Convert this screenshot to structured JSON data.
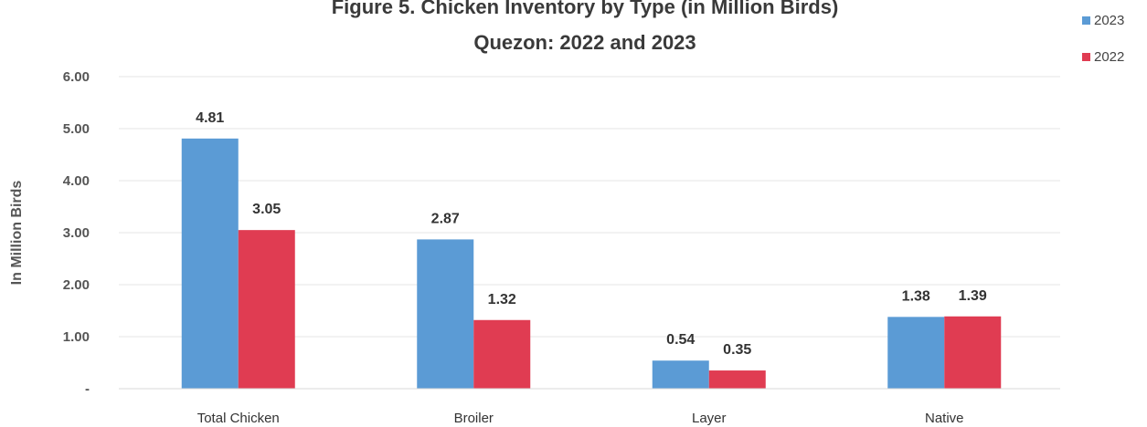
{
  "chart_data": {
    "type": "bar",
    "title": "Figure 5. Chicken Inventory by Type (in Million Birds)",
    "subtitle": "Quezon: 2022 and 2023",
    "ylabel": "In Million Birds",
    "xlabel": "",
    "ylim": [
      0,
      6
    ],
    "yticks": [
      "-",
      "1.00",
      "2.00",
      "3.00",
      "4.00",
      "5.00",
      "6.00"
    ],
    "grid": true,
    "legend_position": "top-right",
    "categories": [
      "Total Chicken",
      "Broiler",
      "Layer",
      "Native"
    ],
    "series": [
      {
        "name": "2023",
        "color": "#5B9BD5",
        "values": [
          4.81,
          2.87,
          0.54,
          1.38
        ],
        "labels": [
          "4.81",
          "2.87",
          "0.54",
          "1.38"
        ]
      },
      {
        "name": "2022",
        "color": "#E03C52",
        "values": [
          3.05,
          1.32,
          0.35,
          1.39
        ],
        "labels": [
          "3.05",
          "1.32",
          "0.35",
          "1.39"
        ]
      }
    ]
  }
}
